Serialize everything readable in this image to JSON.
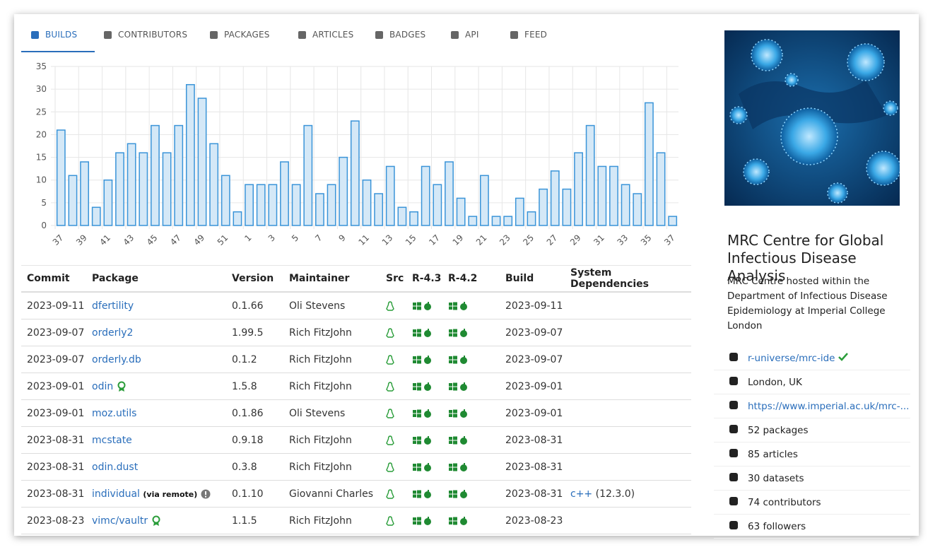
{
  "tabs": [
    "BUILDS",
    "CONTRIBUTORS",
    "PACKAGES",
    "ARTICLES",
    "BADGES",
    "API",
    "FEED"
  ],
  "chart_data": {
    "type": "bar",
    "categories": [
      "37",
      null,
      "39",
      null,
      "41",
      null,
      "43",
      null,
      "45",
      null,
      "47",
      null,
      "49",
      null,
      "51",
      null,
      "1",
      null,
      "3",
      null,
      "5",
      null,
      "7",
      null,
      "9",
      null,
      "11",
      null,
      "13",
      null,
      "15",
      null,
      "17",
      null,
      "19",
      null,
      "21",
      null,
      "23",
      null,
      "25",
      null,
      "27",
      null,
      "29",
      null,
      "31",
      null,
      "33",
      null,
      "35",
      null,
      "37"
    ],
    "values": [
      21,
      11,
      14,
      4,
      10,
      16,
      18,
      16,
      22,
      16,
      22,
      31,
      28,
      18,
      11,
      3,
      9,
      9,
      9,
      14,
      9,
      22,
      7,
      9,
      15,
      23,
      10,
      7,
      13,
      4,
      3,
      13,
      9,
      14,
      6,
      2,
      11,
      2,
      2,
      6,
      3,
      8,
      12,
      8,
      16,
      22,
      13,
      13,
      9,
      7,
      27,
      16,
      2
    ],
    "color": "#d4e8f7",
    "border_color": "#3a94d8",
    "ylim": [
      0,
      35
    ],
    "yticks": [
      0,
      5,
      10,
      15,
      20,
      25,
      30,
      35
    ],
    "grid": true
  },
  "table": {
    "headers": [
      "Commit",
      "Package",
      "Version",
      "Maintainer",
      "Src",
      "R-4.3",
      "R-4.2",
      "Build",
      "System Dependencies"
    ],
    "rows": [
      {
        "commit": "2023-09-11",
        "package": "dfertility",
        "version": "0.1.66",
        "maintainer": "Oli Stevens",
        "build": "2023-09-11"
      },
      {
        "commit": "2023-09-07",
        "package": "orderly2",
        "version": "1.99.5",
        "maintainer": "Rich FitzJohn",
        "build": "2023-09-07"
      },
      {
        "commit": "2023-09-07",
        "package": "orderly.db",
        "version": "0.1.2",
        "maintainer": "Rich FitzJohn",
        "build": "2023-09-07"
      },
      {
        "commit": "2023-09-01",
        "package": "odin",
        "badge": true,
        "version": "1.5.8",
        "maintainer": "Rich FitzJohn",
        "build": "2023-09-01"
      },
      {
        "commit": "2023-09-01",
        "package": "moz.utils",
        "version": "0.1.86",
        "maintainer": "Oli Stevens",
        "build": "2023-09-01"
      },
      {
        "commit": "2023-08-31",
        "package": "mcstate",
        "version": "0.9.18",
        "maintainer": "Rich FitzJohn",
        "build": "2023-08-31"
      },
      {
        "commit": "2023-08-31",
        "package": "odin.dust",
        "version": "0.3.8",
        "maintainer": "Rich FitzJohn",
        "build": "2023-08-31"
      },
      {
        "commit": "2023-08-31",
        "package": "individual",
        "note": "(via remote)",
        "version": "0.1.10",
        "maintainer": "Giovanni Charles",
        "build": "2023-08-31",
        "sysdeps": {
          "name": "c++",
          "version": "(12.3.0)"
        }
      },
      {
        "commit": "2023-08-23",
        "package": "vimc/vaultr",
        "badge": true,
        "version": "1.1.5",
        "maintainer": "Rich FitzJohn",
        "build": "2023-08-23"
      }
    ]
  },
  "sidebar": {
    "title": "MRC Centre for Global Infectious Disease Analysis",
    "description": "MRC Centre hosted within the Department of Infectious Disease Epidemiology at Imperial College London",
    "items": [
      "r-universe/mrc-ide",
      "London, UK",
      "https://www.imperial.ac.uk/mrc-...",
      "52 packages",
      "85 articles",
      "30 datasets",
      "74 contributors",
      "63 followers"
    ]
  }
}
